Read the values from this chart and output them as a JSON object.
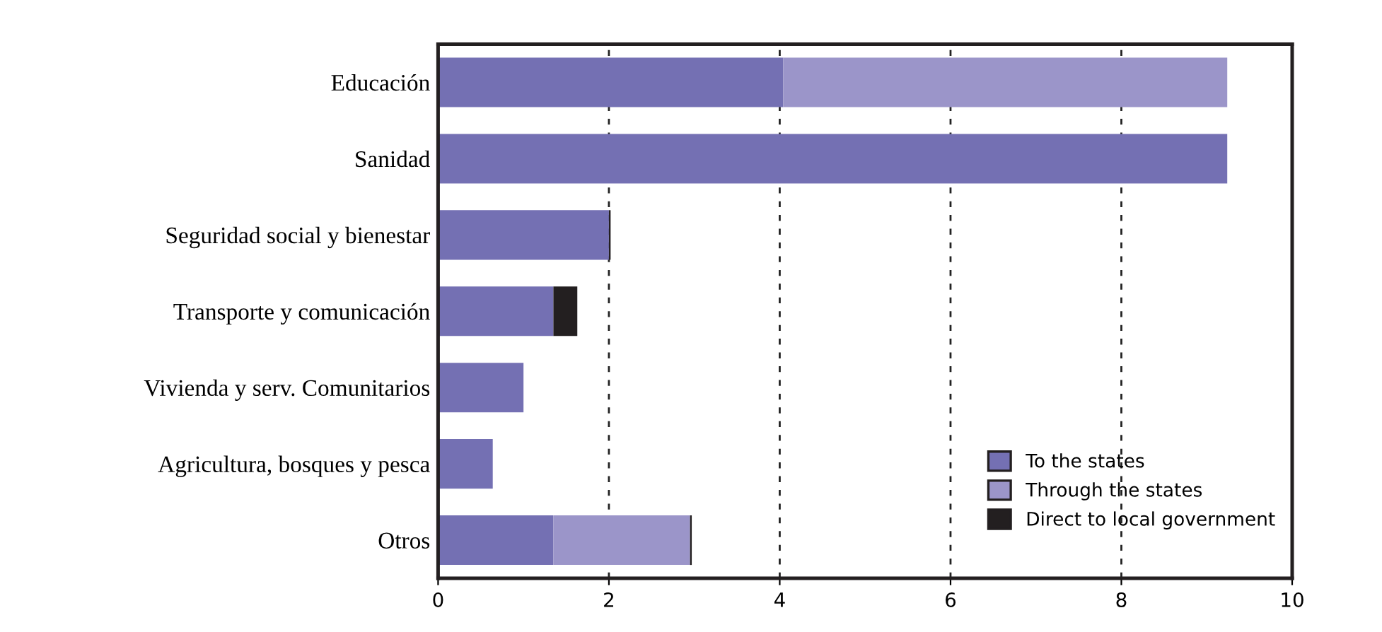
{
  "chart_data": {
    "type": "bar",
    "orientation": "horizontal",
    "stacked": true,
    "categories": [
      "Educación",
      "Sanidad",
      "Seguridad social y bienestar",
      "Transporte y comunicación",
      "Vivienda y serv. Comunitarios",
      "Agricultura, bosques y pesca",
      "Otros"
    ],
    "series": [
      {
        "name": "To the states",
        "color": "#7470b3",
        "values": [
          4.04,
          9.24,
          2.0,
          1.35,
          1.0,
          0.64,
          1.35
        ]
      },
      {
        "name": "Through the states",
        "color": "#9b95c9",
        "values": [
          5.2,
          null,
          null,
          null,
          null,
          null,
          1.6
        ]
      },
      {
        "name": "Direct to local government",
        "color": "#231f20",
        "values": [
          null,
          null,
          0.02,
          0.28,
          null,
          null,
          0.02
        ]
      }
    ],
    "xlim": [
      0,
      10
    ],
    "xticks": [
      0,
      2,
      4,
      6,
      8,
      10
    ],
    "grid": "x",
    "legend": "bottom right"
  }
}
